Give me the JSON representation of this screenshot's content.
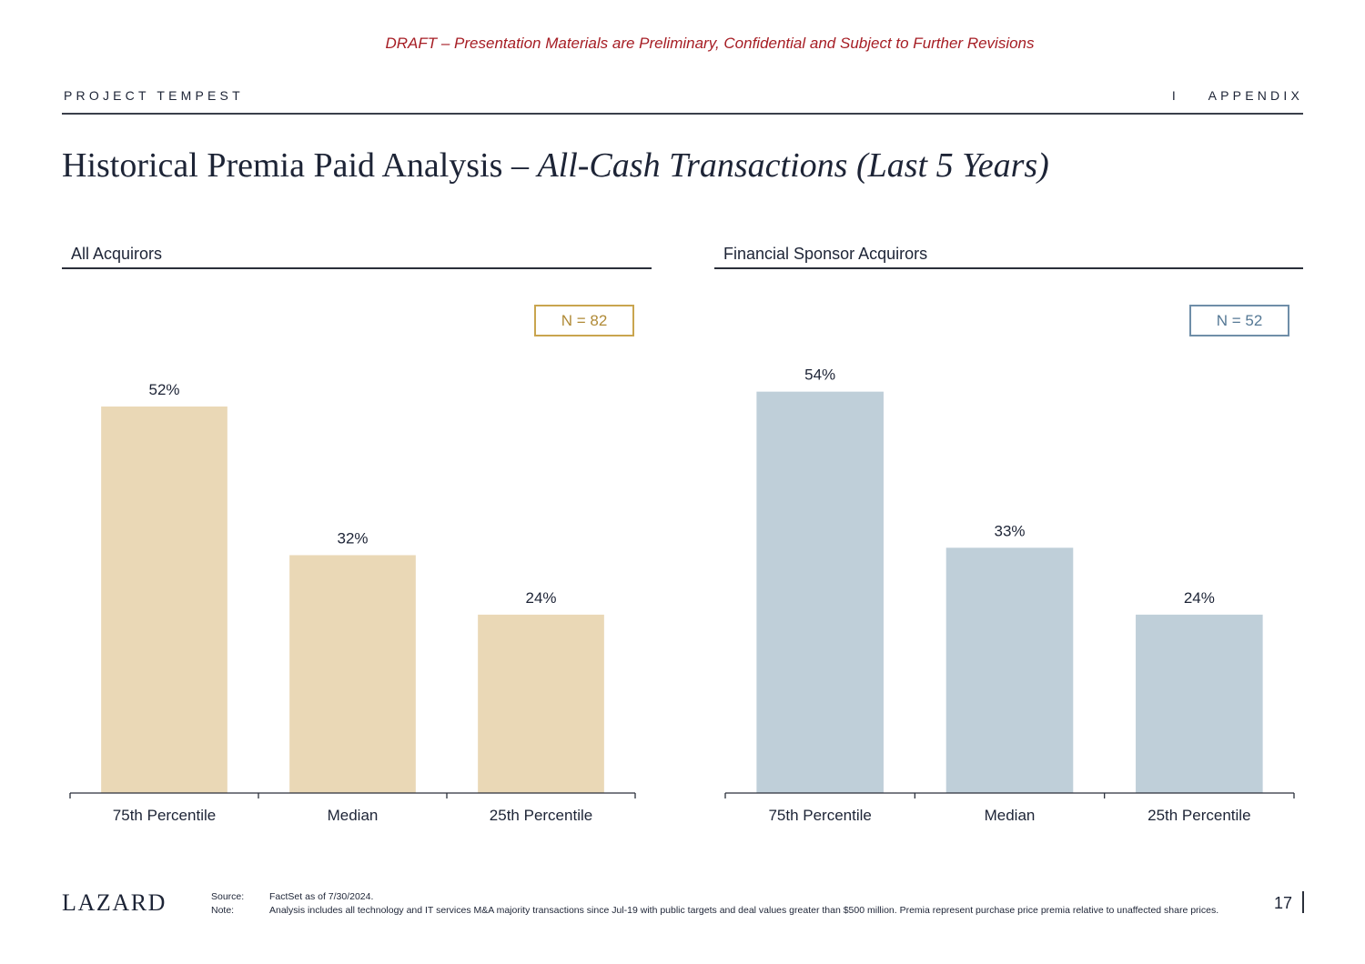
{
  "header": {
    "draft_notice": "DRAFT – Presentation Materials are Preliminary, Confidential and Subject to Further Revisions",
    "project": "PROJECT TEMPEST",
    "section": "I    APPENDIX"
  },
  "title": {
    "main": "Historical Premia Paid Analysis – ",
    "italic": "All-Cash Transactions (Last 5 Years)"
  },
  "chart_data": [
    {
      "type": "bar",
      "title": "All Acquirors",
      "n_label": "N = 82",
      "categories": [
        "75th Percentile",
        "Median",
        "25th Percentile"
      ],
      "values": [
        52,
        32,
        24
      ],
      "data_labels": [
        "52%",
        "32%",
        "24%"
      ],
      "ylim": [
        0,
        60
      ],
      "color": "#ead8b6",
      "accent": "#c9a54f"
    },
    {
      "type": "bar",
      "title": "Financial Sponsor Acquirors",
      "n_label": "N = 52",
      "categories": [
        "75th Percentile",
        "Median",
        "25th Percentile"
      ],
      "values": [
        54,
        33,
        24
      ],
      "data_labels": [
        "54%",
        "33%",
        "24%"
      ],
      "ylim": [
        0,
        60
      ],
      "color": "#bfcfd9",
      "accent": "#6f8ea8"
    }
  ],
  "footer": {
    "brand": "LAZARD",
    "source_label": "Source:",
    "source_text": "FactSet as of 7/30/2024.",
    "note_label": "Note:",
    "note_text": "Analysis includes all technology and IT services M&A majority transactions since Jul-19 with public targets and deal values greater than $500 million. Premia represent purchase price premia relative to unaffected share prices.",
    "page_number": "17"
  }
}
